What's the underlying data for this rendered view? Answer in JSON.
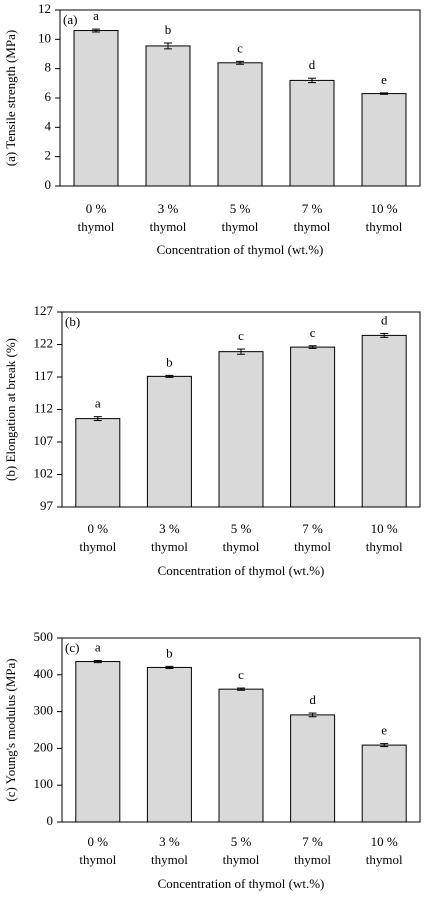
{
  "chart_data": [
    {
      "type": "bar",
      "panel_label": "(a)",
      "ylabel": "(a) Tensile strength (MPa)",
      "xlabel": "Concentration of thymol (wt.%)",
      "categories": [
        [
          "0 %",
          "thymol"
        ],
        [
          "3 %",
          "thymol"
        ],
        [
          "5 %",
          "thymol"
        ],
        [
          "7 %",
          "thymol"
        ],
        [
          "10 %",
          "thymol"
        ]
      ],
      "values": [
        10.6,
        9.55,
        8.4,
        7.2,
        6.3
      ],
      "errors": [
        0.1,
        0.2,
        0.1,
        0.15,
        0.05
      ],
      "annotations": [
        "a",
        "b",
        "c",
        "d",
        "e"
      ],
      "color": "#d9d9d9",
      "ylim": [
        0,
        12
      ],
      "yticks": [
        0,
        2,
        4,
        6,
        8,
        10,
        12
      ]
    },
    {
      "type": "bar",
      "panel_label": "(b)",
      "ylabel": "(b) Elongation at break (%)",
      "xlabel": "Concentration of thymol (wt.%)",
      "categories": [
        [
          "0 %",
          "thymol"
        ],
        [
          "3 %",
          "thymol"
        ],
        [
          "5 %",
          "thymol"
        ],
        [
          "7 %",
          "thymol"
        ],
        [
          "10 %",
          "thymol"
        ]
      ],
      "values": [
        110.6,
        117.1,
        120.9,
        121.6,
        123.4
      ],
      "errors": [
        0.3,
        0.15,
        0.4,
        0.2,
        0.3
      ],
      "annotations": [
        "a",
        "b",
        "c",
        "c",
        "d"
      ],
      "color": "#d9d9d9",
      "ylim": [
        97,
        127
      ],
      "yticks": [
        97,
        102,
        107,
        112,
        117,
        122,
        127
      ]
    },
    {
      "type": "bar",
      "panel_label": "(c)",
      "ylabel": "(c) Young's modulus (MPa)",
      "xlabel": "Concentration of thymol (wt.%)",
      "categories": [
        [
          "0 %",
          "thymol"
        ],
        [
          "3 %",
          "thymol"
        ],
        [
          "5 %",
          "thymol"
        ],
        [
          "7 %",
          "thymol"
        ],
        [
          "10 %",
          "thymol"
        ]
      ],
      "values": [
        436,
        420,
        361,
        291,
        209
      ],
      "errors": [
        3,
        3,
        3,
        5,
        4
      ],
      "annotations": [
        "a",
        "b",
        "c",
        "d",
        "e"
      ],
      "color": "#d9d9d9",
      "ylim": [
        0,
        500
      ],
      "yticks": [
        0,
        100,
        200,
        300,
        400,
        500
      ]
    }
  ]
}
